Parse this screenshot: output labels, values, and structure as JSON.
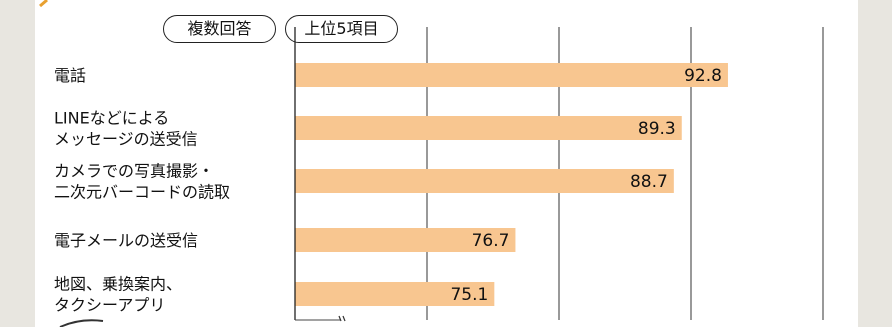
{
  "header": {
    "tags": [
      "複数回答",
      "上位5項目"
    ]
  },
  "chart_data": {
    "type": "bar",
    "orientation": "horizontal",
    "categories": [
      [
        "電話"
      ],
      [
        "LINEなどによる",
        "メッセージの送受信"
      ],
      [
        "カメラでの写真撮影・",
        "二次元バーコードの読取"
      ],
      [
        "電子メールの送受信"
      ],
      [
        "地図、乗換案内、",
        "タクシーアプリ"
      ]
    ],
    "values": [
      92.8,
      89.3,
      88.7,
      76.7,
      75.1
    ],
    "xlim": [
      60,
      100
    ],
    "axis_break": true,
    "grid": true,
    "bar_color": "#f8c690"
  }
}
